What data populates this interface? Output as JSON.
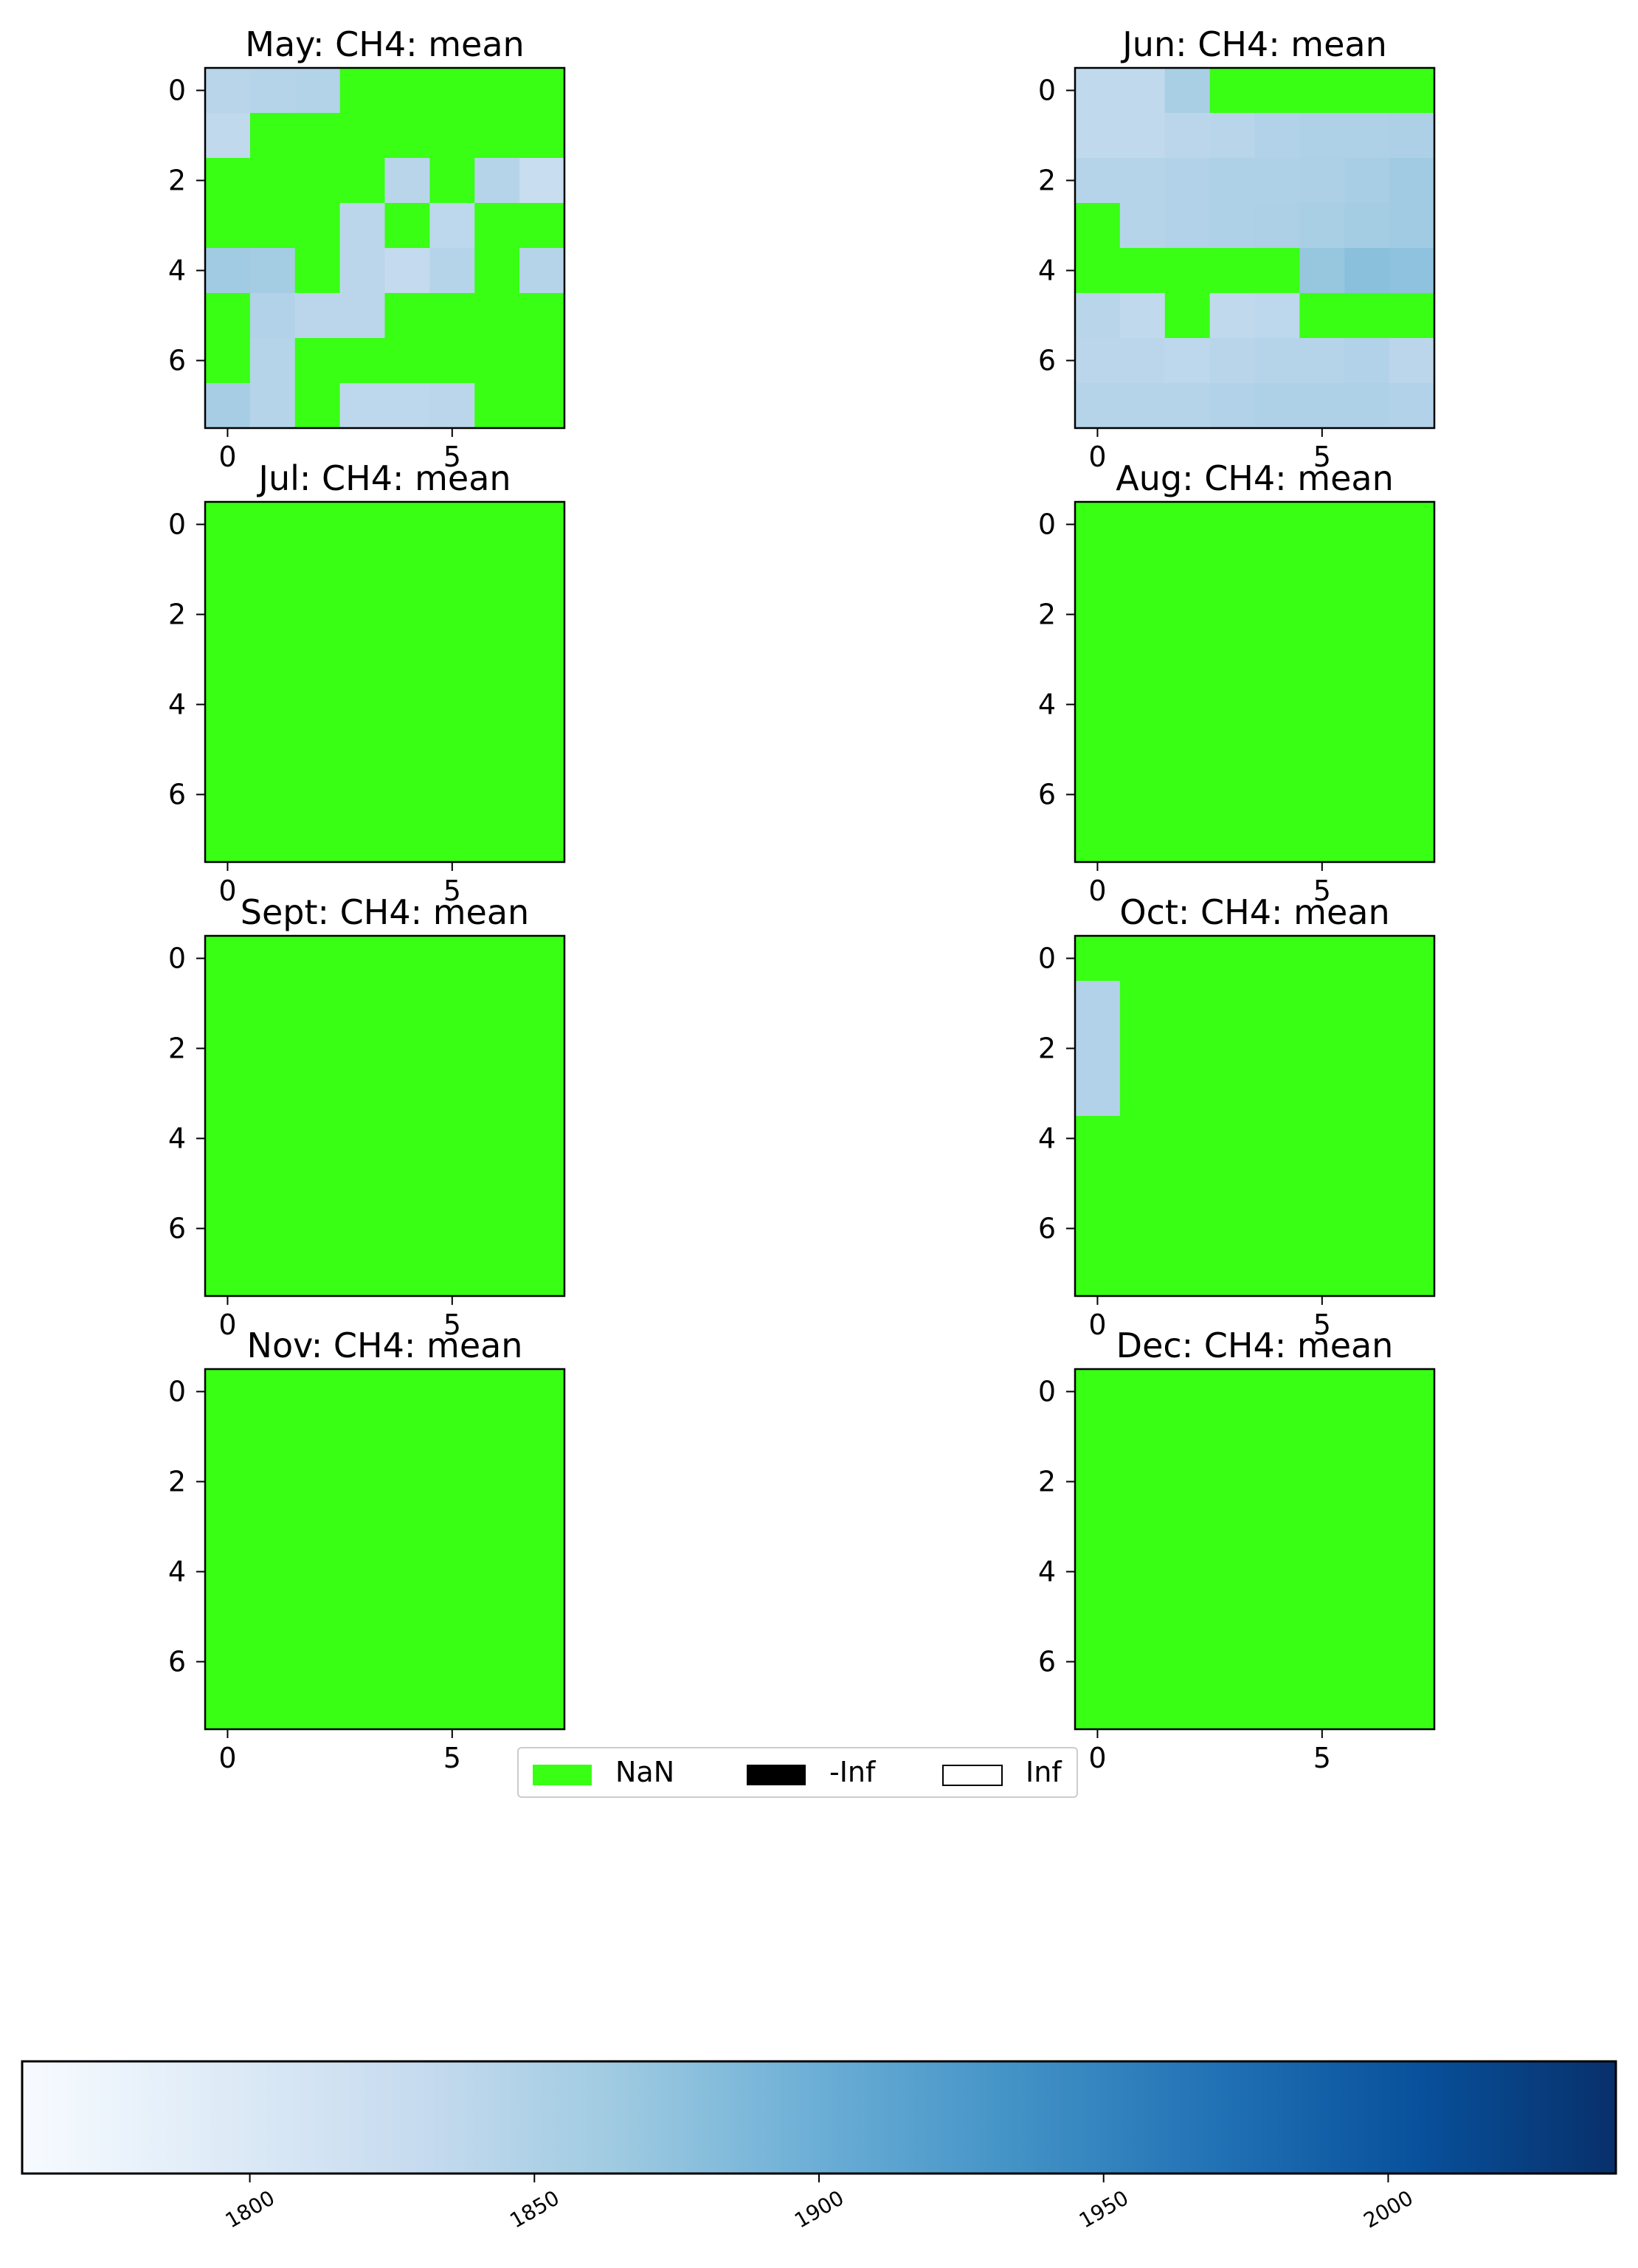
{
  "chart_data": [
    {
      "type": "heatmap",
      "title": "May: CH4: mean",
      "x_ticks": [
        "0",
        "5"
      ],
      "y_ticks": [
        "0",
        "2",
        "4",
        "6"
      ],
      "grid_size": [
        8,
        8
      ],
      "values": [
        [
          1842,
          1845,
          1847,
          null,
          null,
          null,
          null,
          null
        ],
        [
          1835,
          null,
          null,
          null,
          null,
          null,
          null,
          null
        ],
        [
          null,
          null,
          null,
          null,
          1842,
          null,
          1845,
          1825
        ],
        [
          null,
          null,
          null,
          1840,
          null,
          1838,
          null,
          null
        ],
        [
          1862,
          1860,
          null,
          1840,
          1832,
          1845,
          null,
          1845
        ],
        [
          null,
          1848,
          1840,
          1840,
          null,
          null,
          null,
          null
        ],
        [
          null,
          1845,
          null,
          null,
          null,
          null,
          null,
          null
        ],
        [
          1858,
          1845,
          null,
          1838,
          1838,
          1840,
          null,
          null
        ]
      ]
    },
    {
      "type": "heatmap",
      "title": "Jun: CH4: mean",
      "x_ticks": [
        "0",
        "5"
      ],
      "y_ticks": [
        "0",
        "2",
        "4",
        "6"
      ],
      "grid_size": [
        8,
        8
      ],
      "values": [
        [
          1835,
          1835,
          1855,
          null,
          null,
          null,
          null,
          null
        ],
        [
          1835,
          1835,
          1840,
          1842,
          1848,
          1850,
          1850,
          1852
        ],
        [
          1845,
          1845,
          1848,
          1850,
          1850,
          1852,
          1856,
          1862
        ],
        [
          null,
          1845,
          1848,
          1850,
          1852,
          1855,
          1860,
          1862
        ],
        [
          null,
          null,
          null,
          null,
          null,
          1870,
          1878,
          1875
        ],
        [
          1842,
          1835,
          null,
          1835,
          1838,
          null,
          null,
          null
        ],
        [
          1840,
          1840,
          1838,
          1842,
          1845,
          1845,
          1848,
          1840
        ],
        [
          1845,
          1845,
          1845,
          1848,
          1850,
          1850,
          1850,
          1848
        ]
      ]
    },
    {
      "type": "heatmap",
      "title": "Jul: CH4: mean",
      "x_ticks": [
        "0",
        "5"
      ],
      "y_ticks": [
        "0",
        "2",
        "4",
        "6"
      ],
      "grid_size": [
        8,
        8
      ],
      "values": "all NaN"
    },
    {
      "type": "heatmap",
      "title": "Aug: CH4: mean",
      "x_ticks": [
        "0",
        "5"
      ],
      "y_ticks": [
        "0",
        "2",
        "4",
        "6"
      ],
      "grid_size": [
        8,
        8
      ],
      "values": "all NaN"
    },
    {
      "type": "heatmap",
      "title": "Sept: CH4: mean",
      "x_ticks": [
        "0",
        "5"
      ],
      "y_ticks": [
        "0",
        "2",
        "4",
        "6"
      ],
      "grid_size": [
        8,
        8
      ],
      "values": "all NaN"
    },
    {
      "type": "heatmap",
      "title": "Oct: CH4: mean",
      "x_ticks": [
        "0",
        "5"
      ],
      "y_ticks": [
        "0",
        "2",
        "4",
        "6"
      ],
      "grid_size": [
        8,
        8
      ],
      "values": [
        [
          null,
          null,
          null,
          null,
          null,
          null,
          null,
          null
        ],
        [
          1848,
          null,
          null,
          null,
          null,
          null,
          null,
          null
        ],
        [
          1848,
          null,
          null,
          null,
          null,
          null,
          null,
          null
        ],
        [
          1848,
          null,
          null,
          null,
          null,
          null,
          null,
          null
        ],
        [
          null,
          null,
          null,
          null,
          null,
          null,
          null,
          null
        ],
        [
          null,
          null,
          null,
          null,
          null,
          null,
          null,
          null
        ],
        [
          null,
          null,
          null,
          null,
          null,
          null,
          null,
          null
        ],
        [
          null,
          null,
          null,
          null,
          null,
          null,
          null,
          null
        ]
      ]
    },
    {
      "type": "heatmap",
      "title": "Nov: CH4: mean",
      "x_ticks": [
        "0",
        "5"
      ],
      "y_ticks": [
        "0",
        "2",
        "4",
        "6"
      ],
      "grid_size": [
        8,
        8
      ],
      "values": "all NaN"
    },
    {
      "type": "heatmap",
      "title": "Dec: CH4: mean",
      "x_ticks": [
        "0",
        "5"
      ],
      "y_ticks": [
        "0",
        "2",
        "4",
        "6"
      ],
      "grid_size": [
        8,
        8
      ],
      "values": "all NaN"
    }
  ],
  "legend": {
    "entries": [
      {
        "label": "NaN",
        "color": "#39ff14"
      },
      {
        "label": "-Inf",
        "color": "#000000"
      },
      {
        "label": "Inf",
        "color": "#ffffff"
      }
    ]
  },
  "colorbar": {
    "colormap": "Blues",
    "range": [
      1760,
      2040
    ],
    "ticks": [
      "1800",
      "1850",
      "1900",
      "1950",
      "2000"
    ]
  },
  "colors": {
    "nan": "#39ff14",
    "blues_light": "#f7fbff",
    "blues_dark": "#08306b"
  }
}
